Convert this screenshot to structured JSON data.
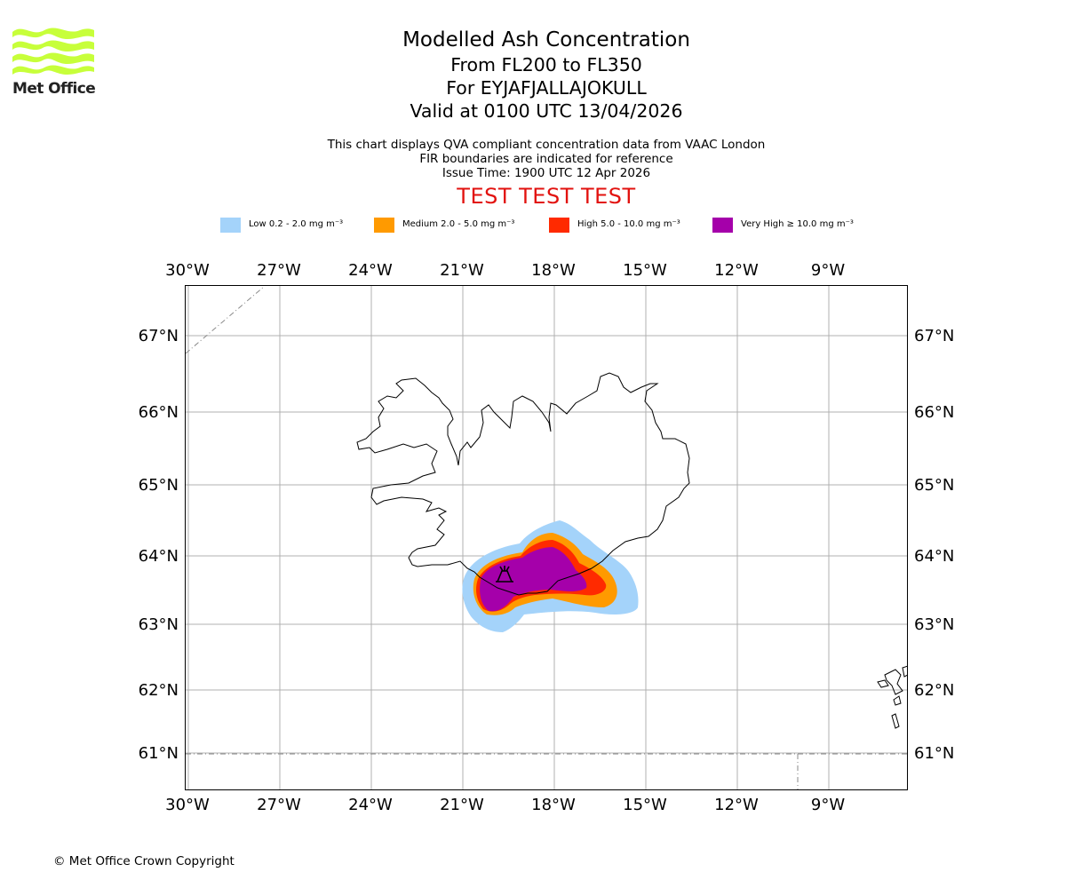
{
  "logo": {
    "text": "Met Office",
    "color": "#c7ff3a"
  },
  "title": {
    "line1": "Modelled Ash Concentration",
    "line2": "From FL200 to FL350",
    "line3": "For EYJAFJALLAJOKULL",
    "line4": "Valid at 0100 UTC 13/04/2026"
  },
  "subtitle": {
    "line1": "This chart displays QVA compliant concentration data from VAAC London",
    "line2": "FIR boundaries are indicated for reference",
    "line3": "Issue Time: 1900 UTC 12 Apr 2026"
  },
  "test_banner": "TEST TEST TEST",
  "legend": [
    {
      "label": "Low 0.2 - 2.0 mg m⁻³",
      "color": "#a4d3fa"
    },
    {
      "label": "Medium 2.0 - 5.0 mg m⁻³",
      "color": "#ff9a00"
    },
    {
      "label": "High 5.0 - 10.0 mg m⁻³",
      "color": "#ff2a00"
    },
    {
      "label": "Very High ≥ 10.0 mg m⁻³",
      "color": "#a500aa"
    }
  ],
  "map": {
    "lon_labels": [
      "30°W",
      "27°W",
      "24°W",
      "21°W",
      "18°W",
      "15°W",
      "12°W",
      "9°W"
    ],
    "lat_labels": [
      "67°N",
      "66°N",
      "65°N",
      "64°N",
      "63°N",
      "62°N",
      "61°N"
    ],
    "volcano": "Eyjafjallajokull"
  },
  "copyright": "© Met Office Crown Copyright"
}
